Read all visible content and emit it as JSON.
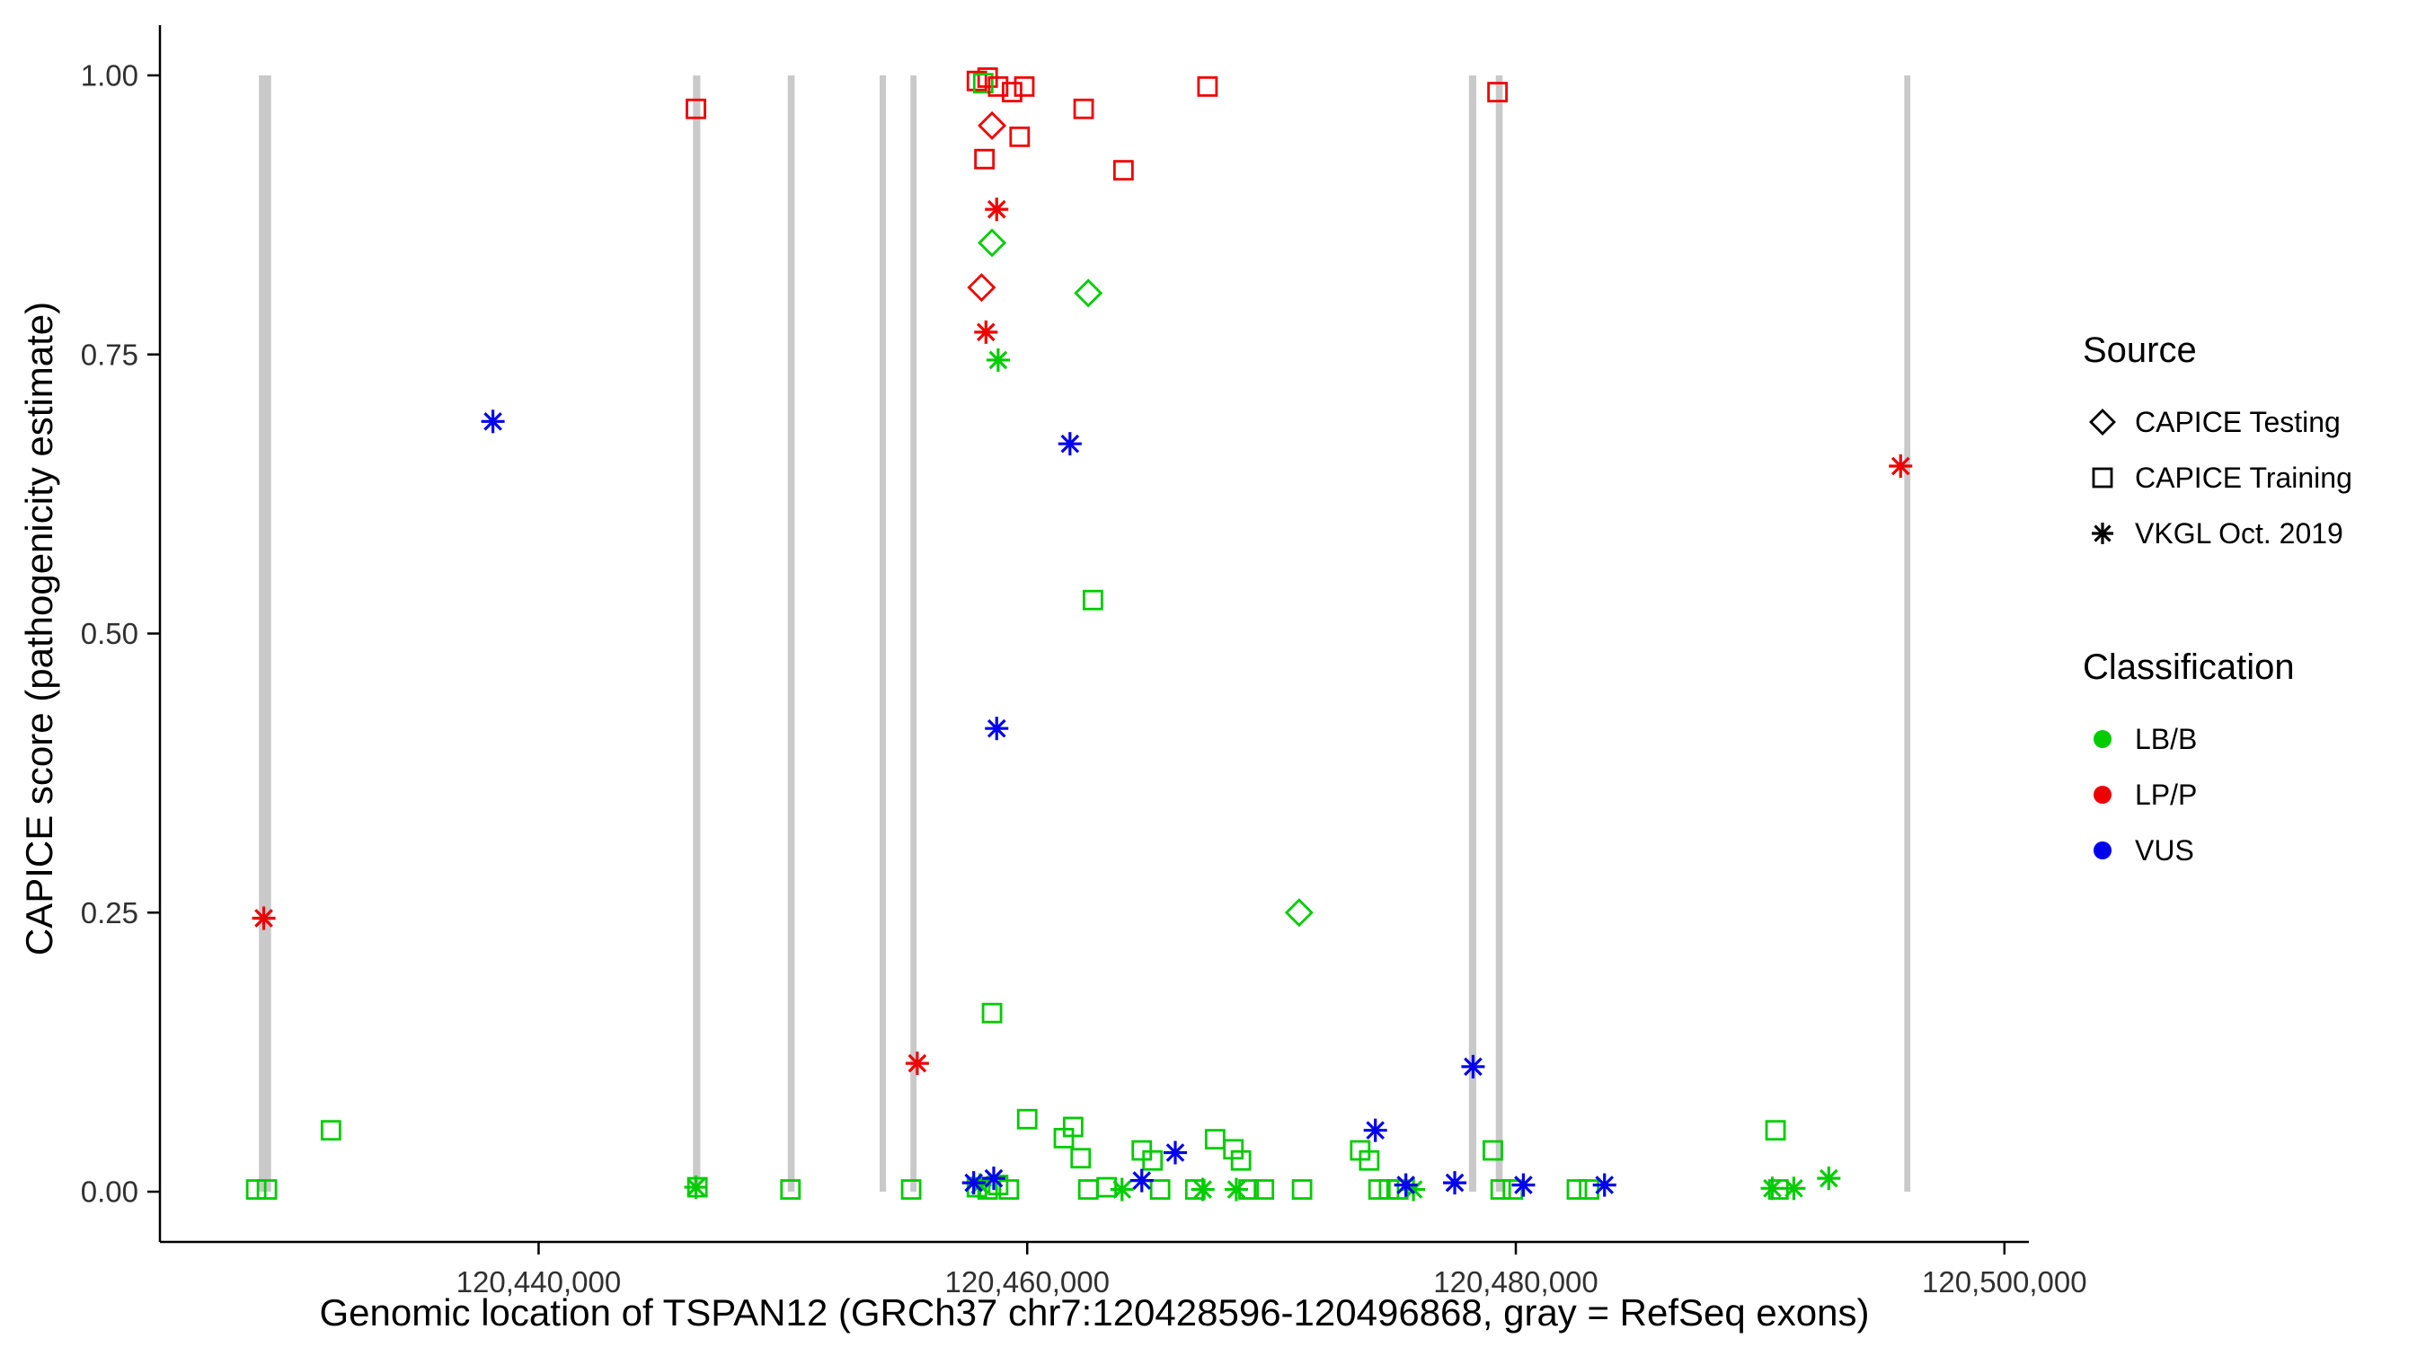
{
  "legend": {
    "source": {
      "title": "Source",
      "items": [
        {
          "label": "CAPICE Testing",
          "marker": "diamond"
        },
        {
          "label": "CAPICE Training",
          "marker": "square"
        },
        {
          "label": "VKGL Oct. 2019",
          "marker": "asterisk"
        }
      ]
    },
    "classification": {
      "title": "Classification",
      "items": [
        {
          "label": "LB/B",
          "color": "#00CC00"
        },
        {
          "label": "LP/P",
          "color": "#EE0000"
        },
        {
          "label": "VUS",
          "color": "#0000EE"
        }
      ]
    }
  },
  "chart_data": {
    "type": "scatter",
    "title": "",
    "xlabel": "Genomic location of TSPAN12 (GRCh37 chr7:120428596-120496868, gray = RefSeq exons)",
    "ylabel": "CAPICE score (pathogenicity estimate)",
    "xlim": [
      120424500,
      120501000
    ],
    "ylim": [
      -0.045,
      1.045
    ],
    "grid": false,
    "legend_position": "right",
    "exon_color": "#C9C9C9",
    "axis_color": "#000000",
    "tick_label_color": "#303030",
    "x_ticks": [
      {
        "value": 120440000,
        "label": "120,440,000"
      },
      {
        "value": 120460000,
        "label": "120,460,000"
      },
      {
        "value": 120480000,
        "label": "120,480,000"
      },
      {
        "value": 120500000,
        "label": "120,500,000"
      }
    ],
    "y_ticks": [
      {
        "value": 0.0,
        "label": "0.00"
      },
      {
        "value": 0.25,
        "label": "0.25"
      },
      {
        "value": 0.5,
        "label": "0.50"
      },
      {
        "value": 0.75,
        "label": "0.75"
      },
      {
        "value": 1.0,
        "label": "1.00"
      }
    ],
    "colors": {
      "LB/B": "#00CC00",
      "LP/P": "#EE0000",
      "VUS": "#0000EE"
    },
    "shapes": {
      "testing": "diamond",
      "training": "square",
      "vkgl": "asterisk"
    },
    "source_names": {
      "testing": "CAPICE Testing",
      "training": "CAPICE Training",
      "vkgl": "VKGL Oct. 2019"
    },
    "exons": [
      {
        "start": 120428550,
        "end": 120429050
      },
      {
        "start": 120446320,
        "end": 120446620
      },
      {
        "start": 120450200,
        "end": 120450480
      },
      {
        "start": 120453960,
        "end": 120454220
      },
      {
        "start": 120455220,
        "end": 120455470
      },
      {
        "start": 120478080,
        "end": 120478380
      },
      {
        "start": 120479180,
        "end": 120479460
      },
      {
        "start": 120495900,
        "end": 120496150
      }
    ],
    "points": [
      {
        "x": 120446440,
        "y": 0.97,
        "source": "training",
        "cls": "LP/P"
      },
      {
        "x": 120457940,
        "y": 0.995,
        "source": "training",
        "cls": "LP/P"
      },
      {
        "x": 120458380,
        "y": 0.998,
        "source": "training",
        "cls": "LP/P"
      },
      {
        "x": 120458200,
        "y": 0.993,
        "source": "training",
        "cls": "LB/B"
      },
      {
        "x": 120458810,
        "y": 0.99,
        "source": "training",
        "cls": "LP/P"
      },
      {
        "x": 120459380,
        "y": 0.985,
        "source": "training",
        "cls": "LP/P"
      },
      {
        "x": 120459880,
        "y": 0.99,
        "source": "training",
        "cls": "LP/P"
      },
      {
        "x": 120458250,
        "y": 0.925,
        "source": "training",
        "cls": "LP/P"
      },
      {
        "x": 120459690,
        "y": 0.945,
        "source": "training",
        "cls": "LP/P"
      },
      {
        "x": 120462310,
        "y": 0.97,
        "source": "training",
        "cls": "LP/P"
      },
      {
        "x": 120463940,
        "y": 0.915,
        "source": "training",
        "cls": "LP/P"
      },
      {
        "x": 120467380,
        "y": 0.99,
        "source": "training",
        "cls": "LP/P"
      },
      {
        "x": 120479250,
        "y": 0.985,
        "source": "training",
        "cls": "LP/P"
      },
      {
        "x": 120458560,
        "y": 0.955,
        "source": "testing",
        "cls": "LP/P"
      },
      {
        "x": 120458130,
        "y": 0.81,
        "source": "testing",
        "cls": "LP/P"
      },
      {
        "x": 120458750,
        "y": 0.88,
        "source": "vkgl",
        "cls": "LP/P"
      },
      {
        "x": 120458310,
        "y": 0.77,
        "source": "vkgl",
        "cls": "LP/P"
      },
      {
        "x": 120428750,
        "y": 0.245,
        "source": "vkgl",
        "cls": "LP/P"
      },
      {
        "x": 120455500,
        "y": 0.115,
        "source": "vkgl",
        "cls": "LP/P"
      },
      {
        "x": 120495750,
        "y": 0.65,
        "source": "vkgl",
        "cls": "LP/P"
      },
      {
        "x": 120458560,
        "y": 0.85,
        "source": "testing",
        "cls": "LB/B"
      },
      {
        "x": 120462500,
        "y": 0.805,
        "source": "testing",
        "cls": "LB/B"
      },
      {
        "x": 120471130,
        "y": 0.25,
        "source": "testing",
        "cls": "LB/B"
      },
      {
        "x": 120458810,
        "y": 0.745,
        "source": "vkgl",
        "cls": "LB/B"
      },
      {
        "x": 120462690,
        "y": 0.53,
        "source": "training",
        "cls": "LB/B"
      },
      {
        "x": 120458560,
        "y": 0.16,
        "source": "training",
        "cls": "LB/B"
      },
      {
        "x": 120460000,
        "y": 0.065,
        "source": "training",
        "cls": "LB/B"
      },
      {
        "x": 120461500,
        "y": 0.048,
        "source": "training",
        "cls": "LB/B"
      },
      {
        "x": 120461880,
        "y": 0.058,
        "source": "training",
        "cls": "LB/B"
      },
      {
        "x": 120431500,
        "y": 0.055,
        "source": "training",
        "cls": "LB/B"
      },
      {
        "x": 120428440,
        "y": 0.002,
        "source": "training",
        "cls": "LB/B"
      },
      {
        "x": 120428880,
        "y": 0.002,
        "source": "training",
        "cls": "LB/B"
      },
      {
        "x": 120446500,
        "y": 0.004,
        "source": "training",
        "cls": "LB/B"
      },
      {
        "x": 120446440,
        "y": 0.004,
        "source": "vkgl",
        "cls": "LB/B"
      },
      {
        "x": 120450310,
        "y": 0.002,
        "source": "training",
        "cls": "LB/B"
      },
      {
        "x": 120455250,
        "y": 0.002,
        "source": "training",
        "cls": "LB/B"
      },
      {
        "x": 120457940,
        "y": 0.004,
        "source": "training",
        "cls": "LB/B"
      },
      {
        "x": 120458380,
        "y": 0.002,
        "source": "training",
        "cls": "LB/B"
      },
      {
        "x": 120458810,
        "y": 0.006,
        "source": "training",
        "cls": "LB/B"
      },
      {
        "x": 120459250,
        "y": 0.002,
        "source": "training",
        "cls": "LB/B"
      },
      {
        "x": 120458060,
        "y": 0.006,
        "source": "vkgl",
        "cls": "LB/B"
      },
      {
        "x": 120457810,
        "y": 0.008,
        "source": "vkgl",
        "cls": "VUS"
      },
      {
        "x": 120458630,
        "y": 0.012,
        "source": "vkgl",
        "cls": "VUS"
      },
      {
        "x": 120462190,
        "y": 0.03,
        "source": "training",
        "cls": "LB/B"
      },
      {
        "x": 120462500,
        "y": 0.002,
        "source": "training",
        "cls": "LB/B"
      },
      {
        "x": 120463250,
        "y": 0.004,
        "source": "training",
        "cls": "LB/B"
      },
      {
        "x": 120463880,
        "y": 0.002,
        "source": "vkgl",
        "cls": "LB/B"
      },
      {
        "x": 120464690,
        "y": 0.037,
        "source": "training",
        "cls": "LB/B"
      },
      {
        "x": 120465130,
        "y": 0.028,
        "source": "training",
        "cls": "LB/B"
      },
      {
        "x": 120465440,
        "y": 0.002,
        "source": "training",
        "cls": "LB/B"
      },
      {
        "x": 120464690,
        "y": 0.01,
        "source": "vkgl",
        "cls": "VUS"
      },
      {
        "x": 120466060,
        "y": 0.035,
        "source": "vkgl",
        "cls": "VUS"
      },
      {
        "x": 120466880,
        "y": 0.002,
        "source": "training",
        "cls": "LB/B"
      },
      {
        "x": 120467190,
        "y": 0.002,
        "source": "vkgl",
        "cls": "LB/B"
      },
      {
        "x": 120467690,
        "y": 0.047,
        "source": "training",
        "cls": "LB/B"
      },
      {
        "x": 120468440,
        "y": 0.038,
        "source": "training",
        "cls": "LB/B"
      },
      {
        "x": 120468750,
        "y": 0.028,
        "source": "training",
        "cls": "LB/B"
      },
      {
        "x": 120468560,
        "y": 0.002,
        "source": "vkgl",
        "cls": "LB/B"
      },
      {
        "x": 120469060,
        "y": 0.002,
        "source": "training",
        "cls": "LB/B"
      },
      {
        "x": 120469690,
        "y": 0.002,
        "source": "training",
        "cls": "LB/B"
      },
      {
        "x": 120471250,
        "y": 0.002,
        "source": "training",
        "cls": "LB/B"
      },
      {
        "x": 120473630,
        "y": 0.037,
        "source": "training",
        "cls": "LB/B"
      },
      {
        "x": 120474000,
        "y": 0.028,
        "source": "training",
        "cls": "LB/B"
      },
      {
        "x": 120474380,
        "y": 0.002,
        "source": "training",
        "cls": "LB/B"
      },
      {
        "x": 120474810,
        "y": 0.002,
        "source": "training",
        "cls": "LB/B"
      },
      {
        "x": 120475190,
        "y": 0.002,
        "source": "training",
        "cls": "LB/B"
      },
      {
        "x": 120474250,
        "y": 0.055,
        "source": "vkgl",
        "cls": "VUS"
      },
      {
        "x": 120475810,
        "y": 0.002,
        "source": "vkgl",
        "cls": "LB/B"
      },
      {
        "x": 120475500,
        "y": 0.006,
        "source": "vkgl",
        "cls": "VUS"
      },
      {
        "x": 120477500,
        "y": 0.008,
        "source": "vkgl",
        "cls": "VUS"
      },
      {
        "x": 120479060,
        "y": 0.037,
        "source": "training",
        "cls": "LB/B"
      },
      {
        "x": 120479380,
        "y": 0.002,
        "source": "training",
        "cls": "LB/B"
      },
      {
        "x": 120479880,
        "y": 0.002,
        "source": "training",
        "cls": "LB/B"
      },
      {
        "x": 120480310,
        "y": 0.006,
        "source": "vkgl",
        "cls": "VUS"
      },
      {
        "x": 120482500,
        "y": 0.002,
        "source": "training",
        "cls": "LB/B"
      },
      {
        "x": 120483000,
        "y": 0.002,
        "source": "training",
        "cls": "LB/B"
      },
      {
        "x": 120483630,
        "y": 0.006,
        "source": "vkgl",
        "cls": "VUS"
      },
      {
        "x": 120490630,
        "y": 0.055,
        "source": "training",
        "cls": "LB/B"
      },
      {
        "x": 120490750,
        "y": 0.002,
        "source": "training",
        "cls": "LB/B"
      },
      {
        "x": 120490500,
        "y": 0.003,
        "source": "vkgl",
        "cls": "LB/B"
      },
      {
        "x": 120491380,
        "y": 0.003,
        "source": "vkgl",
        "cls": "LB/B"
      },
      {
        "x": 120492810,
        "y": 0.012,
        "source": "vkgl",
        "cls": "LB/B"
      },
      {
        "x": 120438130,
        "y": 0.69,
        "source": "vkgl",
        "cls": "VUS"
      },
      {
        "x": 120461750,
        "y": 0.67,
        "source": "vkgl",
        "cls": "VUS"
      },
      {
        "x": 120458750,
        "y": 0.415,
        "source": "vkgl",
        "cls": "VUS"
      },
      {
        "x": 120478250,
        "y": 0.112,
        "source": "vkgl",
        "cls": "VUS"
      }
    ]
  }
}
